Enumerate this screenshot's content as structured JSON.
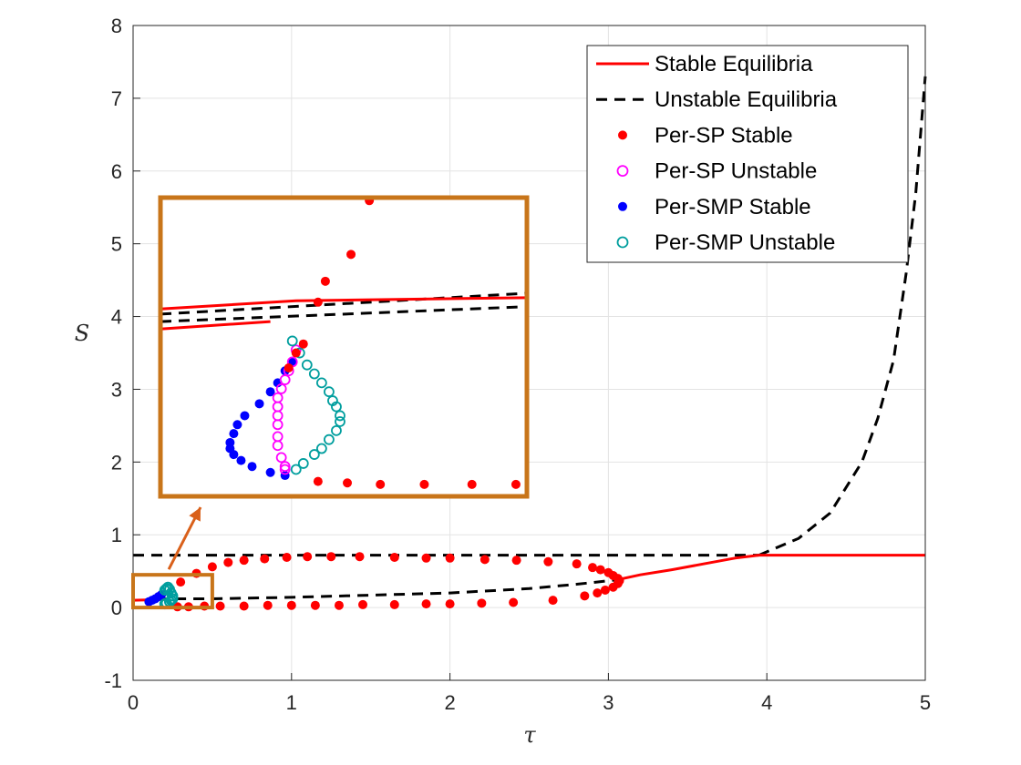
{
  "chart_data": {
    "type": "line",
    "title": "",
    "xlabel": "τ",
    "ylabel": "S",
    "xlim": [
      0,
      5
    ],
    "ylim": [
      -1,
      8
    ],
    "xticks": [
      "0",
      "1",
      "2",
      "3",
      "4",
      "5"
    ],
    "yticks": [
      "-1",
      "0",
      "1",
      "2",
      "3",
      "4",
      "5",
      "6",
      "7",
      "8"
    ],
    "grid": true,
    "legend_position": "top-right",
    "colors": {
      "stable_eq": "#ff0000",
      "unstable_eq": "#000000",
      "sp_stable": "#ff0000",
      "sp_unstable": "#ff00ff",
      "smp_stable": "#0000ff",
      "smp_unstable": "#009e9e",
      "inset_frame": "#c8751a",
      "arrow": "#d9601a"
    },
    "legend": [
      {
        "label": "Stable Equilibria",
        "style": "solid-line",
        "color": "#ff0000"
      },
      {
        "label": "Unstable Equilibria",
        "style": "dashed-line",
        "color": "#000000"
      },
      {
        "label": "Per-SP Stable",
        "style": "filled-dot",
        "color": "#ff0000"
      },
      {
        "label": "Per-SP Unstable",
        "style": "open-circle",
        "color": "#ff00ff"
      },
      {
        "label": "Per-SMP Stable",
        "style": "filled-dot",
        "color": "#0000ff"
      },
      {
        "label": "Per-SMP Unstable",
        "style": "open-circle",
        "color": "#009e9e"
      }
    ],
    "series": [
      {
        "name": "Stable Equilibria",
        "style": "solid",
        "segments": [
          [
            [
              0,
              0.1
            ],
            [
              0.2,
              0.11
            ]
          ],
          [
            [
              3.05,
              0.38
            ],
            [
              3.2,
              0.45
            ],
            [
              3.4,
              0.52
            ],
            [
              3.6,
              0.6
            ],
            [
              3.8,
              0.68
            ],
            [
              3.95,
              0.72
            ],
            [
              5,
              0.72
            ]
          ]
        ]
      },
      {
        "name": "Unstable Equilibria",
        "style": "dashed",
        "segments": [
          [
            [
              0,
              0.72
            ],
            [
              3.95,
              0.72
            ]
          ],
          [
            [
              0.15,
              0.12
            ],
            [
              0.5,
              0.12
            ],
            [
              1.0,
              0.14
            ],
            [
              1.5,
              0.17
            ],
            [
              2.0,
              0.2
            ],
            [
              2.5,
              0.26
            ],
            [
              2.8,
              0.32
            ],
            [
              3.05,
              0.38
            ]
          ],
          [
            [
              3.95,
              0.72
            ],
            [
              4.2,
              0.95
            ],
            [
              4.4,
              1.3
            ],
            [
              4.6,
              2.0
            ],
            [
              4.7,
              2.6
            ],
            [
              4.8,
              3.4
            ],
            [
              4.88,
              4.6
            ],
            [
              4.94,
              5.7
            ],
            [
              5.0,
              7.3
            ]
          ]
        ]
      },
      {
        "name": "Per-SP Stable",
        "marker": "filled",
        "points": [
          [
            0.3,
            0.35
          ],
          [
            0.4,
            0.47
          ],
          [
            0.5,
            0.56
          ],
          [
            0.6,
            0.62
          ],
          [
            0.7,
            0.65
          ],
          [
            0.83,
            0.67
          ],
          [
            0.97,
            0.69
          ],
          [
            1.1,
            0.7
          ],
          [
            1.25,
            0.7
          ],
          [
            1.43,
            0.7
          ],
          [
            1.65,
            0.69
          ],
          [
            1.85,
            0.68
          ],
          [
            2.0,
            0.68
          ],
          [
            2.22,
            0.66
          ],
          [
            2.42,
            0.65
          ],
          [
            2.62,
            0.63
          ],
          [
            2.8,
            0.6
          ],
          [
            2.9,
            0.55
          ],
          [
            2.95,
            0.52
          ],
          [
            3.0,
            0.48
          ],
          [
            3.03,
            0.44
          ],
          [
            3.06,
            0.4
          ],
          [
            3.07,
            0.37
          ],
          [
            3.06,
            0.33
          ],
          [
            3.03,
            0.28
          ],
          [
            2.98,
            0.24
          ],
          [
            2.93,
            0.2
          ],
          [
            2.85,
            0.16
          ],
          [
            2.65,
            0.1
          ],
          [
            2.4,
            0.07
          ],
          [
            2.2,
            0.06
          ],
          [
            2.0,
            0.05
          ],
          [
            1.85,
            0.05
          ],
          [
            1.65,
            0.04
          ],
          [
            1.45,
            0.04
          ],
          [
            1.3,
            0.03
          ],
          [
            1.15,
            0.03
          ],
          [
            1.0,
            0.03
          ],
          [
            0.85,
            0.03
          ],
          [
            0.7,
            0.02
          ],
          [
            0.55,
            0.02
          ],
          [
            0.45,
            0.02
          ],
          [
            0.35,
            0.01
          ],
          [
            0.28,
            0.01
          ]
        ]
      },
      {
        "name": "Per-SMP Unstable",
        "marker": "open",
        "points": [
          [
            0.2,
            0.24
          ],
          [
            0.21,
            0.26
          ],
          [
            0.22,
            0.28
          ],
          [
            0.23,
            0.25
          ],
          [
            0.24,
            0.2
          ],
          [
            0.25,
            0.16
          ],
          [
            0.25,
            0.12
          ],
          [
            0.24,
            0.1
          ],
          [
            0.23,
            0.08
          ],
          [
            0.21,
            0.06
          ],
          [
            0.2,
            0.05
          ]
        ]
      },
      {
        "name": "Per-SMP Stable",
        "marker": "filled",
        "points": [
          [
            0.1,
            0.08
          ],
          [
            0.12,
            0.1
          ],
          [
            0.14,
            0.12
          ],
          [
            0.16,
            0.15
          ],
          [
            0.18,
            0.18
          ]
        ]
      }
    ],
    "inset": {
      "zoom_box_data": {
        "x": [
          0,
          0.5
        ],
        "y": [
          0,
          0.45
        ]
      },
      "curves": {
        "stable_line": [
          [
            0,
            0.627
          ],
          [
            0.37,
            0.655
          ],
          [
            1,
            0.665
          ]
        ],
        "stable_line_lower": [
          [
            0,
            0.56
          ],
          [
            0.3,
            0.585
          ]
        ],
        "unstable_line_upper": [
          [
            0,
            0.61
          ],
          [
            1,
            0.68
          ]
        ],
        "unstable_line_lower": [
          [
            0,
            0.585
          ],
          [
            1,
            0.635
          ]
        ]
      },
      "sp_stable": [
        [
          0.57,
          0.99
        ],
        [
          0.52,
          0.81
        ],
        [
          0.45,
          0.72
        ],
        [
          0.43,
          0.65
        ],
        [
          0.39,
          0.51
        ],
        [
          0.37,
          0.48
        ],
        [
          0.35,
          0.43
        ],
        [
          0.43,
          0.05
        ],
        [
          0.51,
          0.045
        ],
        [
          0.6,
          0.04
        ],
        [
          0.72,
          0.04
        ],
        [
          0.85,
          0.04
        ],
        [
          0.97,
          0.04
        ]
      ],
      "sp_unstable": [
        [
          0.37,
          0.49
        ],
        [
          0.36,
          0.45
        ],
        [
          0.35,
          0.42
        ],
        [
          0.34,
          0.39
        ],
        [
          0.33,
          0.36
        ],
        [
          0.32,
          0.33
        ],
        [
          0.32,
          0.3
        ],
        [
          0.32,
          0.27
        ],
        [
          0.32,
          0.24
        ],
        [
          0.32,
          0.2
        ],
        [
          0.32,
          0.17
        ],
        [
          0.33,
          0.13
        ],
        [
          0.34,
          0.1
        ],
        [
          0.34,
          0.09
        ]
      ],
      "smp_stable": [
        [
          0.36,
          0.45
        ],
        [
          0.34,
          0.42
        ],
        [
          0.32,
          0.38
        ],
        [
          0.3,
          0.35
        ],
        [
          0.27,
          0.31
        ],
        [
          0.23,
          0.27
        ],
        [
          0.21,
          0.24
        ],
        [
          0.2,
          0.21
        ],
        [
          0.19,
          0.18
        ],
        [
          0.19,
          0.16
        ],
        [
          0.2,
          0.14
        ],
        [
          0.22,
          0.12
        ],
        [
          0.25,
          0.1
        ],
        [
          0.3,
          0.08
        ],
        [
          0.34,
          0.07
        ]
      ],
      "smp_unstable": [
        [
          0.36,
          0.52
        ],
        [
          0.38,
          0.48
        ],
        [
          0.4,
          0.44
        ],
        [
          0.42,
          0.41
        ],
        [
          0.44,
          0.38
        ],
        [
          0.46,
          0.35
        ],
        [
          0.47,
          0.32
        ],
        [
          0.48,
          0.3
        ],
        [
          0.49,
          0.27
        ],
        [
          0.49,
          0.25
        ],
        [
          0.48,
          0.22
        ],
        [
          0.46,
          0.19
        ],
        [
          0.44,
          0.16
        ],
        [
          0.42,
          0.14
        ],
        [
          0.39,
          0.11
        ],
        [
          0.37,
          0.09
        ]
      ]
    }
  }
}
